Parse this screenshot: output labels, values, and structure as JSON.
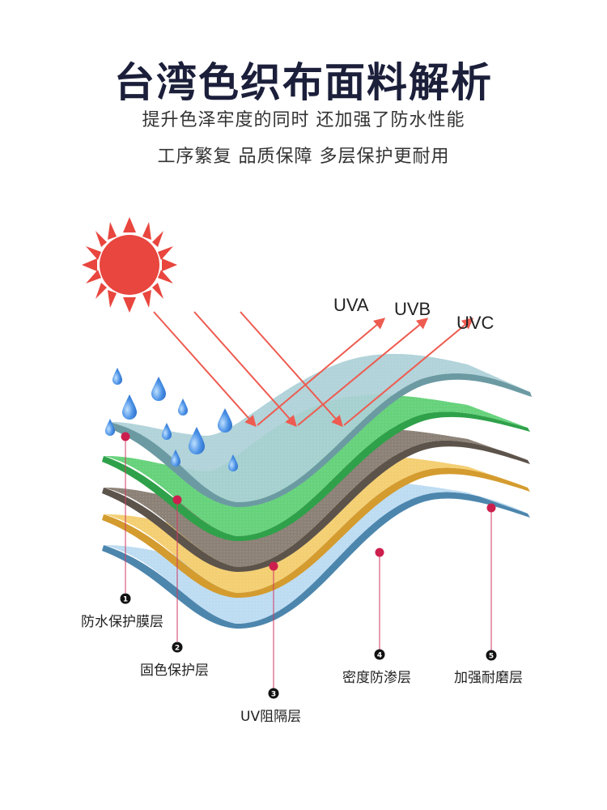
{
  "header": {
    "title": "台湾色织布面料解析",
    "subtitle_line1": "提升色泽牢度的同时 还加强了防水性能",
    "subtitle_line2": "工序繁复 品质保障 多层保护更耐用"
  },
  "colors": {
    "sun": "#e8463e",
    "ray": "#ee5b50",
    "marker": "#cc1f4e",
    "water": "#3f86e0",
    "layer_membrane": "#a9cfd6",
    "layer_color": "#5fcf74",
    "layer_uv": "#8e8377",
    "layer_density": "#f3cc6a",
    "layer_wear": "#b9dbf1"
  },
  "uv_rays": [
    {
      "label": "UVA"
    },
    {
      "label": "UVB"
    },
    {
      "label": "UVC"
    }
  ],
  "layers": [
    {
      "number": "1",
      "label": "防水保护膜层"
    },
    {
      "number": "2",
      "label": "固色保护层"
    },
    {
      "number": "3",
      "label": "UV阻隔层"
    },
    {
      "number": "4",
      "label": "密度防渗层"
    },
    {
      "number": "5",
      "label": "加强耐磨层"
    }
  ]
}
